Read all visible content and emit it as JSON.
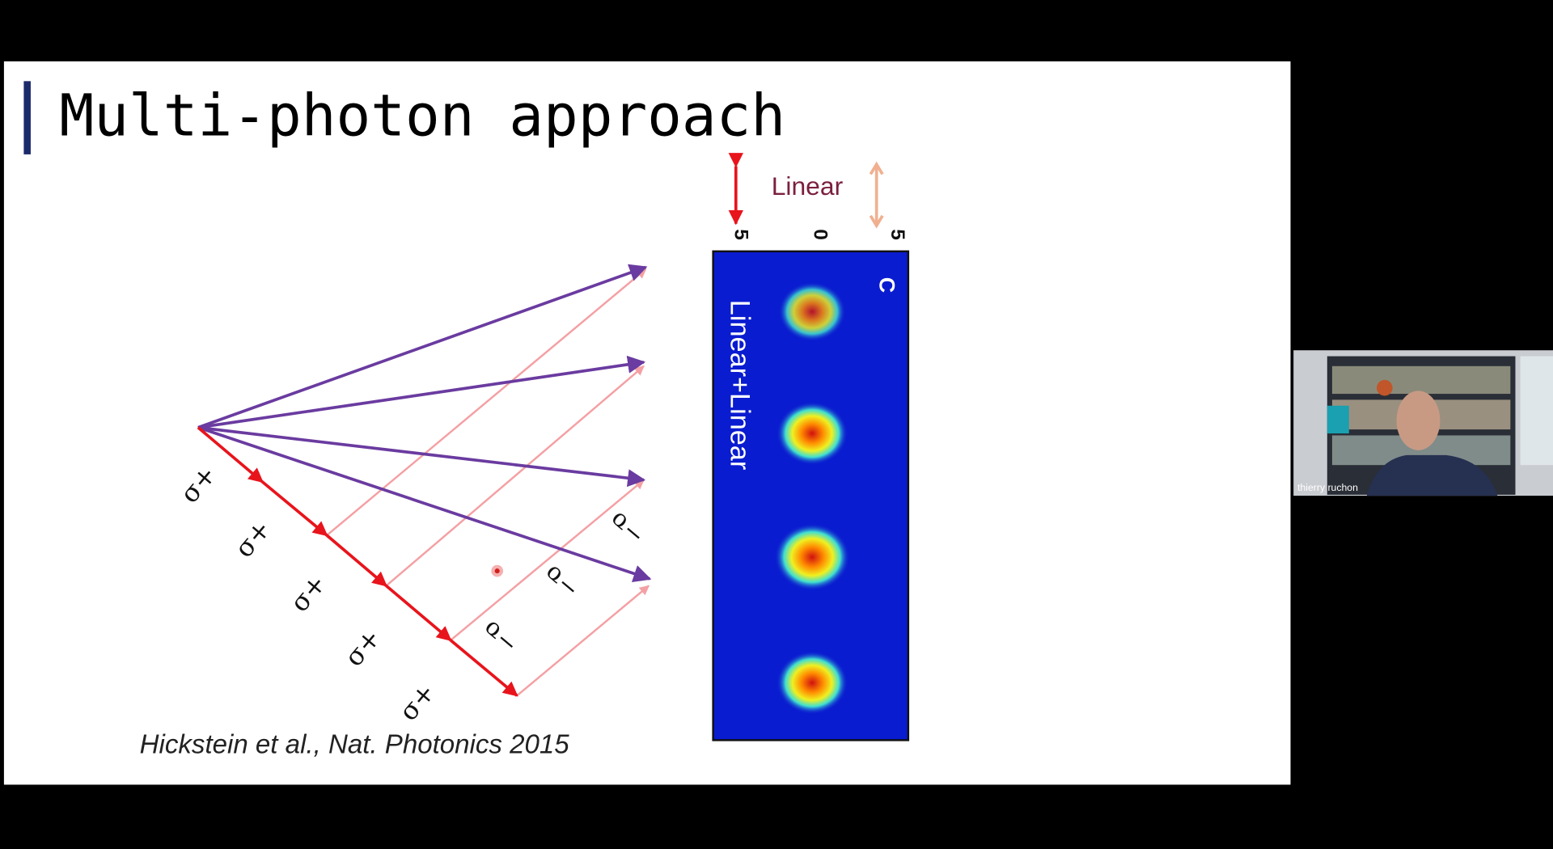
{
  "slide": {
    "title": "Multi-photon approach",
    "diagram": {
      "sigma_plus": [
        "σ+",
        "σ+",
        "σ+",
        "σ+",
        "σ+"
      ],
      "sigma_minus": [
        "σ−",
        "σ−",
        "σ−"
      ]
    },
    "polarization_label": "Linear",
    "panel": {
      "label": "C",
      "caption": "Linear+Linear",
      "axis_ticks": [
        "5",
        "0",
        "5"
      ]
    },
    "citation": "Hickstein et al., Nat. Photonics  2015"
  },
  "webcam": {
    "participant_name": "thierry ruchon"
  }
}
